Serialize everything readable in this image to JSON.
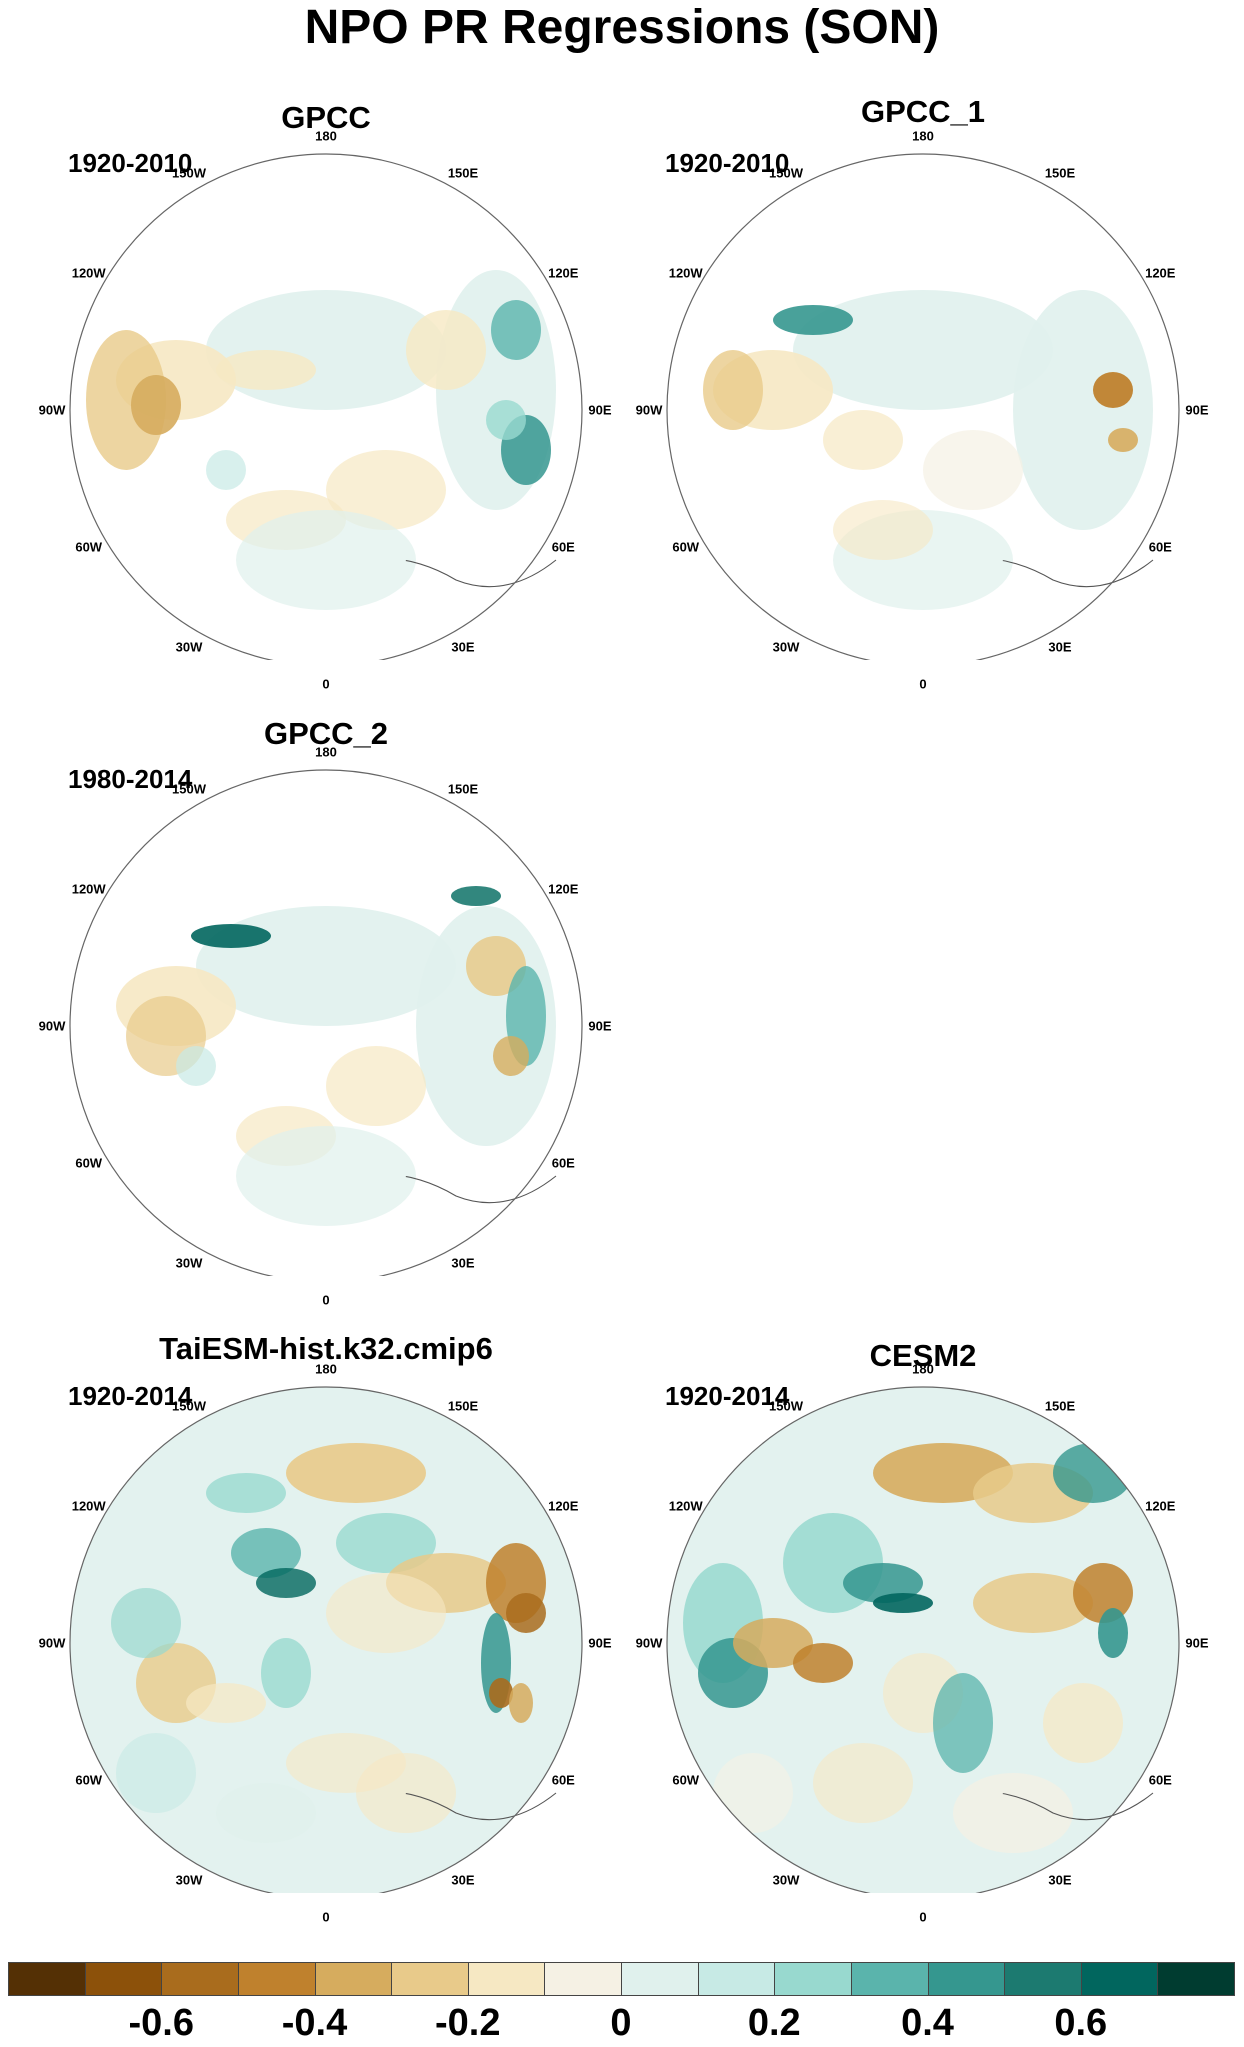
{
  "title": "NPO PR Regressions (SON)",
  "panels": [
    {
      "title": "GPCC",
      "period": "1920-2010",
      "field": "obs1"
    },
    {
      "title": "GPCC_1",
      "period": "1920-2010",
      "field": "obs2"
    },
    {
      "title": "GPCC_2",
      "period": "1980-2014",
      "field": "obs3"
    },
    {
      "title": "TaiESM-hist.k32.cmip6",
      "period": "1920-2014",
      "field": "model1"
    },
    {
      "title": "CESM2",
      "period": "1920-2014",
      "field": "model2"
    }
  ],
  "longitude_labels": [
    "180",
    "150E",
    "120E",
    "90E",
    "60E",
    "30E",
    "0",
    "30W",
    "60W",
    "90W",
    "120W",
    "150W"
  ],
  "colorbar": {
    "colors": [
      "#543005",
      "#8c510a",
      "#a96c1d",
      "#bf812d",
      "#d6ac5e",
      "#e8ca8a",
      "#f6e8c3",
      "#f5f1e4",
      "#e0f1ed",
      "#c7eae5",
      "#98d9cf",
      "#5ab4ac",
      "#35978f",
      "#1c7a70",
      "#01665e",
      "#003c30"
    ],
    "tick_labels": [
      "-0.6",
      "-0.4",
      "-0.2",
      "0",
      "0.2",
      "0.4",
      "0.6"
    ]
  }
}
